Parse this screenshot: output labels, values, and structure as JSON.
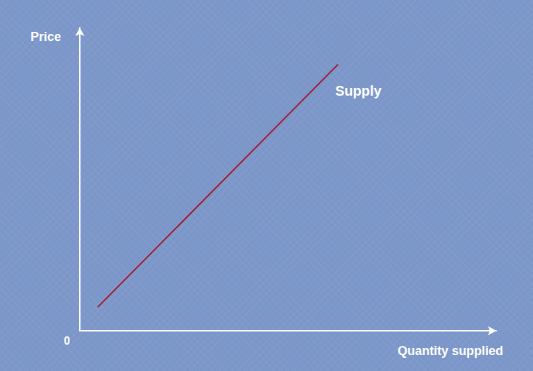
{
  "chart_data": {
    "type": "line",
    "xlabel": "Quantity supplied",
    "ylabel": "Price",
    "x": [
      4.3,
      62
    ],
    "series": [
      {
        "name": "Supply",
        "color": "#a3162c",
        "values": [
          7.8,
          87.9
        ]
      }
    ],
    "xlim": [
      0,
      100
    ],
    "ylim": [
      0,
      100
    ],
    "xticks": [
      0
    ],
    "yticks": [],
    "grid": false,
    "tick_labels": "x"
  }
}
